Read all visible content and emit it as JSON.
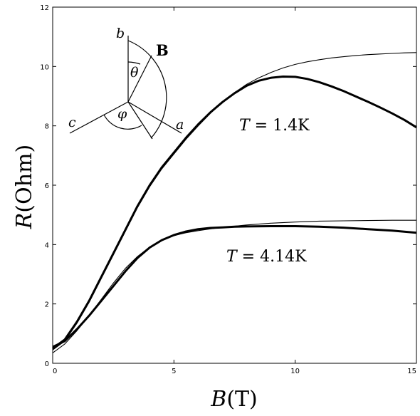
{
  "chart_data": {
    "type": "line",
    "xlabel_var": "B",
    "xlabel_unit": "(T)",
    "ylabel_var": "R",
    "ylabel_unit": "(Ohm)",
    "xlim": [
      0,
      15
    ],
    "ylim": [
      0,
      12
    ],
    "x_ticks": [
      "0",
      "5",
      "10",
      "15"
    ],
    "y_ticks": [
      "0",
      "2",
      "4",
      "6",
      "8",
      "10",
      "12"
    ],
    "grid": false,
    "annotations": [
      {
        "var": "T",
        "text": " = 1.4K"
      },
      {
        "var": "T",
        "text": " = 4.14K"
      }
    ],
    "inset": {
      "axis_labels": {
        "a": "a",
        "b": "b",
        "c": "c"
      },
      "angle_labels": {
        "theta": "θ",
        "phi": "φ"
      },
      "field_label": "B"
    },
    "series": [
      {
        "group": "T = 1.4K",
        "style": "measured",
        "x": [
          0,
          0.5,
          1,
          1.5,
          2,
          2.5,
          3,
          3.5,
          4,
          4.5,
          5,
          5.5,
          6,
          6.5,
          7,
          7.5,
          8,
          8.5,
          9,
          9.5,
          10,
          10.5,
          11,
          11.5,
          12,
          12.5,
          13,
          13.5,
          14,
          14.5,
          15
        ],
        "y": [
          0.5,
          0.8,
          1.4,
          2.1,
          2.9,
          3.7,
          4.5,
          5.3,
          6.0,
          6.6,
          7.1,
          7.6,
          8.05,
          8.45,
          8.8,
          9.1,
          9.35,
          9.52,
          9.62,
          9.66,
          9.65,
          9.58,
          9.47,
          9.33,
          9.17,
          8.99,
          8.81,
          8.62,
          8.42,
          8.2,
          7.95
        ]
      },
      {
        "group": "T = 1.4K",
        "style": "fit",
        "x": [
          0,
          0.5,
          1,
          1.5,
          2,
          2.5,
          3,
          3.5,
          4,
          4.5,
          5,
          5.5,
          6,
          6.5,
          7,
          7.5,
          8,
          8.5,
          9,
          9.5,
          10,
          10.5,
          11,
          11.5,
          12,
          12.5,
          13,
          13.5,
          14,
          14.5,
          15
        ],
        "y": [
          0.45,
          0.75,
          1.35,
          2.05,
          2.85,
          3.65,
          4.45,
          5.25,
          5.95,
          6.55,
          7.05,
          7.55,
          8.0,
          8.42,
          8.8,
          9.12,
          9.4,
          9.62,
          9.8,
          9.95,
          10.07,
          10.16,
          10.23,
          10.29,
          10.33,
          10.37,
          10.4,
          10.42,
          10.44,
          10.46,
          10.47
        ]
      },
      {
        "group": "T = 4.14K",
        "style": "measured",
        "x": [
          0,
          0.5,
          1,
          1.5,
          2,
          2.5,
          3,
          3.5,
          4,
          4.5,
          5,
          5.5,
          6,
          6.5,
          7,
          7.5,
          8,
          9,
          10,
          11,
          12,
          13,
          14,
          15
        ],
        "y": [
          0.55,
          0.75,
          1.15,
          1.6,
          2.1,
          2.6,
          3.1,
          3.55,
          3.9,
          4.15,
          4.32,
          4.44,
          4.52,
          4.56,
          4.58,
          4.6,
          4.61,
          4.62,
          4.62,
          4.6,
          4.57,
          4.52,
          4.47,
          4.4
        ]
      },
      {
        "group": "T = 4.14K",
        "style": "fit",
        "x": [
          0,
          0.5,
          1,
          1.5,
          2,
          2.5,
          3,
          3.5,
          4,
          4.5,
          5,
          5.5,
          6,
          6.5,
          7,
          7.5,
          8,
          9,
          10,
          11,
          12,
          13,
          14,
          15
        ],
        "y": [
          0.35,
          0.65,
          1.1,
          1.6,
          2.15,
          2.7,
          3.2,
          3.6,
          3.92,
          4.15,
          4.3,
          4.4,
          4.47,
          4.53,
          4.58,
          4.62,
          4.66,
          4.72,
          4.76,
          4.79,
          4.8,
          4.81,
          4.82,
          4.82
        ]
      }
    ]
  }
}
